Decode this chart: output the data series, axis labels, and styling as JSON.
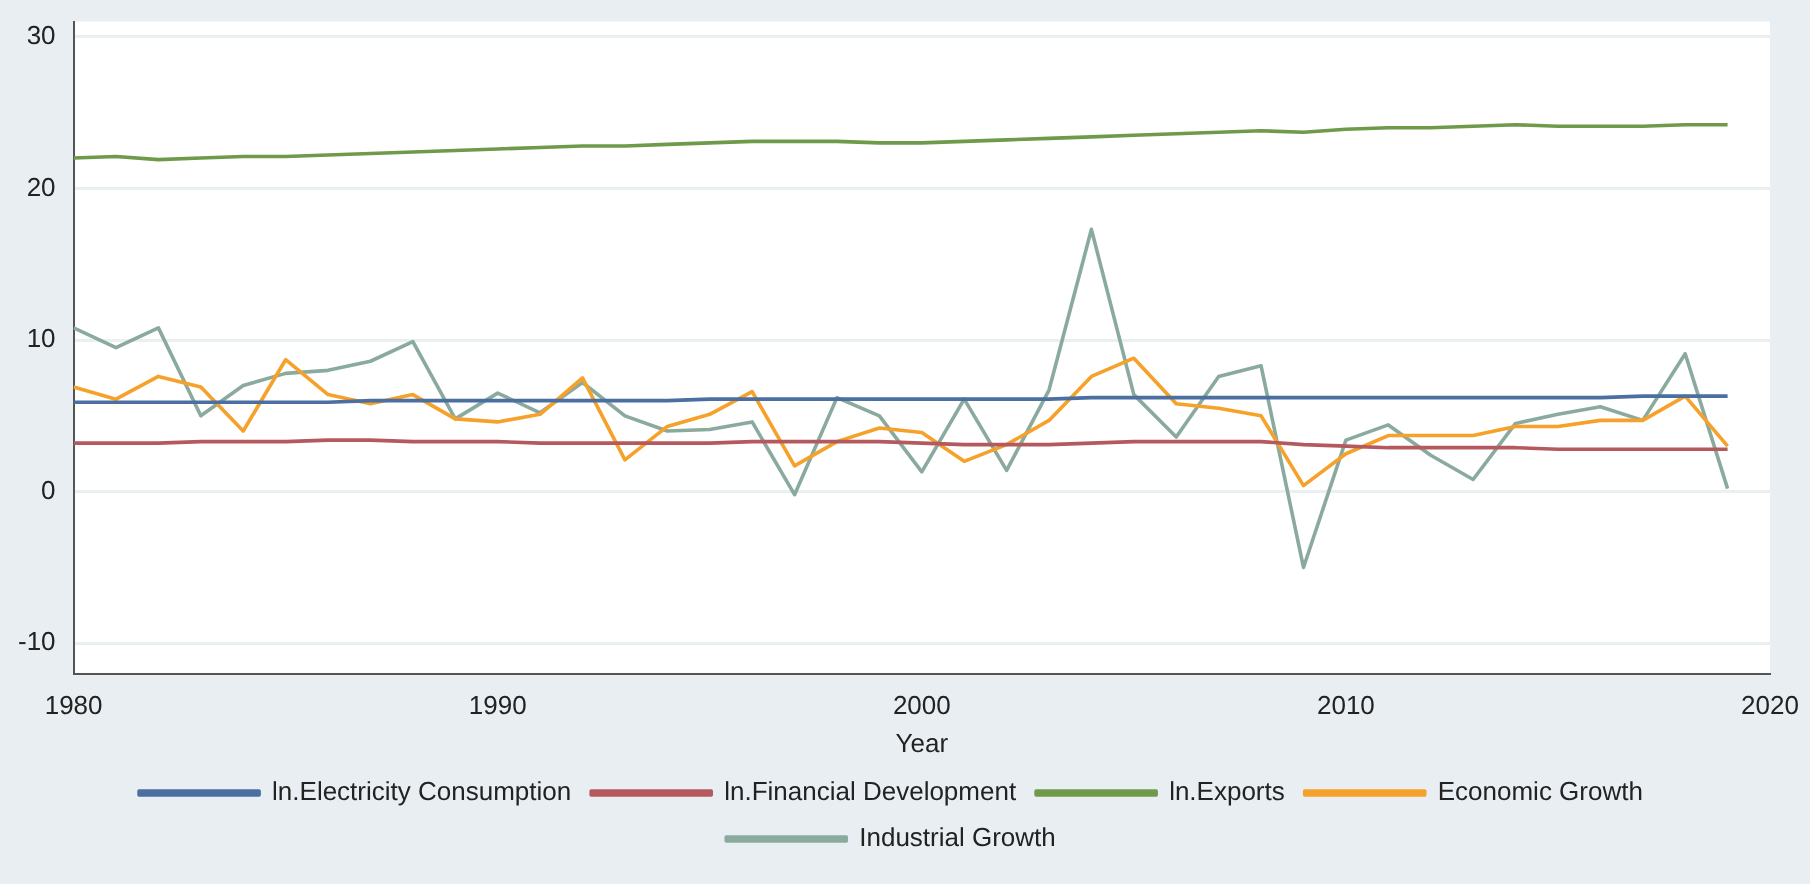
{
  "chart_data": {
    "type": "line",
    "xlabel": "Year",
    "x": [
      1980,
      1981,
      1982,
      1983,
      1984,
      1985,
      1986,
      1987,
      1988,
      1989,
      1990,
      1991,
      1992,
      1993,
      1994,
      1995,
      1996,
      1997,
      1998,
      1999,
      2000,
      2001,
      2002,
      2003,
      2004,
      2005,
      2006,
      2007,
      2008,
      2009,
      2010,
      2011,
      2012,
      2013,
      2014,
      2015,
      2016,
      2017,
      2018,
      2019
    ],
    "xlim": [
      1980,
      2020
    ],
    "xticks": [
      1980,
      1990,
      2000,
      2010,
      2020
    ],
    "ylim": [
      -12,
      31
    ],
    "yticks": [
      -10,
      0,
      10,
      20,
      30
    ],
    "grid": "y",
    "legend": "bottom",
    "marker": "none",
    "line_style": "solid",
    "series": [
      {
        "name": "ln.Electricity Consumption",
        "color": "#4a6fa0",
        "values": [
          5.9,
          5.9,
          5.9,
          5.9,
          5.9,
          5.9,
          5.9,
          6.0,
          6.0,
          6.0,
          6.0,
          6.0,
          6.0,
          6.0,
          6.0,
          6.1,
          6.1,
          6.1,
          6.1,
          6.1,
          6.1,
          6.1,
          6.1,
          6.1,
          6.2,
          6.2,
          6.2,
          6.2,
          6.2,
          6.2,
          6.2,
          6.2,
          6.2,
          6.2,
          6.2,
          6.2,
          6.2,
          6.3,
          6.3,
          6.3
        ]
      },
      {
        "name": "ln.Financial Development",
        "color": "#b45a5f",
        "values": [
          3.2,
          3.2,
          3.2,
          3.3,
          3.3,
          3.3,
          3.4,
          3.4,
          3.3,
          3.3,
          3.3,
          3.2,
          3.2,
          3.2,
          3.2,
          3.2,
          3.3,
          3.3,
          3.3,
          3.3,
          3.2,
          3.1,
          3.1,
          3.1,
          3.2,
          3.3,
          3.3,
          3.3,
          3.3,
          3.1,
          3.0,
          2.9,
          2.9,
          2.9,
          2.9,
          2.8,
          2.8,
          2.8,
          2.8,
          2.8
        ]
      },
      {
        "name": "ln.Exports",
        "color": "#6e9a4a",
        "values": [
          22.0,
          22.1,
          21.9,
          22.0,
          22.1,
          22.1,
          22.2,
          22.3,
          22.4,
          22.5,
          22.6,
          22.7,
          22.8,
          22.8,
          22.9,
          23.0,
          23.1,
          23.1,
          23.1,
          23.0,
          23.0,
          23.1,
          23.2,
          23.3,
          23.4,
          23.5,
          23.6,
          23.7,
          23.8,
          23.7,
          23.9,
          24.0,
          24.0,
          24.1,
          24.2,
          24.1,
          24.1,
          24.1,
          24.2,
          24.2
        ]
      },
      {
        "name": "Economic Growth",
        "color": "#f5a12a",
        "values": [
          6.9,
          6.1,
          7.6,
          6.9,
          4.0,
          8.7,
          6.4,
          5.8,
          6.4,
          4.8,
          4.6,
          5.1,
          7.5,
          2.1,
          4.3,
          5.1,
          6.6,
          1.7,
          3.3,
          4.2,
          3.9,
          2.0,
          3.1,
          4.7,
          7.6,
          8.8,
          5.8,
          5.5,
          5.0,
          0.4,
          2.5,
          3.7,
          3.7,
          3.7,
          4.3,
          4.3,
          4.7,
          4.7,
          6.3,
          3.0
        ]
      },
      {
        "name": "Industrial Growth",
        "color": "#8aaa9e",
        "values": [
          10.8,
          9.5,
          10.8,
          5.0,
          7.0,
          7.8,
          8.0,
          8.6,
          9.9,
          4.8,
          6.5,
          5.2,
          7.2,
          5.0,
          4.0,
          4.1,
          4.6,
          -0.2,
          6.2,
          5.0,
          1.3,
          6.1,
          1.4,
          6.7,
          17.3,
          6.4,
          3.6,
          7.6,
          8.3,
          -5.0,
          3.4,
          4.4,
          2.4,
          0.8,
          4.5,
          5.1,
          5.6,
          4.7,
          9.1,
          0.2
        ]
      }
    ]
  }
}
